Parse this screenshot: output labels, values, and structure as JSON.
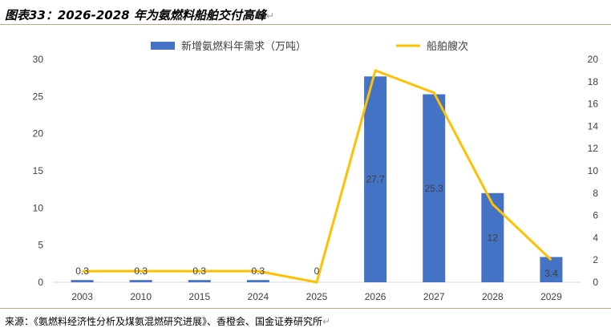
{
  "header": {
    "title": "图表33：2026-2028 年为氨燃料船舶交付高峰",
    "return_mark": "↵"
  },
  "footer": {
    "source": "来源：《氨燃料经济性分析及煤氨混燃研究进展》、香橙会、国金证券研究所",
    "return_mark": "↵"
  },
  "chart_data": {
    "type": "bar",
    "categories": [
      "2003",
      "2010",
      "2015",
      "2024",
      "2025",
      "2026",
      "2027",
      "2028",
      "2029"
    ],
    "series": [
      {
        "name": "新增氨燃料年需求（万吨）",
        "kind": "bar",
        "axis": "left",
        "color": "#4472C4",
        "values": [
          0.3,
          0.3,
          0.3,
          0.3,
          0,
          27.7,
          25.3,
          12,
          3.4
        ],
        "labels": [
          "0.3",
          "0.3",
          "0.3",
          "0.3",
          "0",
          "27.7",
          "25.3",
          "12",
          "3.4"
        ]
      },
      {
        "name": "船舶艘次",
        "kind": "line",
        "axis": "right",
        "color": "#FFC000",
        "values": [
          1,
          1,
          1,
          1,
          0,
          19,
          17,
          7,
          2
        ]
      }
    ],
    "ylim_left": [
      0,
      30
    ],
    "yticks_left": [
      "0",
      "5",
      "10",
      "15",
      "20",
      "25",
      "30"
    ],
    "ylim_right": [
      0,
      20
    ],
    "yticks_right": [
      "0",
      "2",
      "4",
      "6",
      "8",
      "10",
      "12",
      "14",
      "16",
      "18",
      "20"
    ],
    "legend": "top",
    "grid": false
  }
}
